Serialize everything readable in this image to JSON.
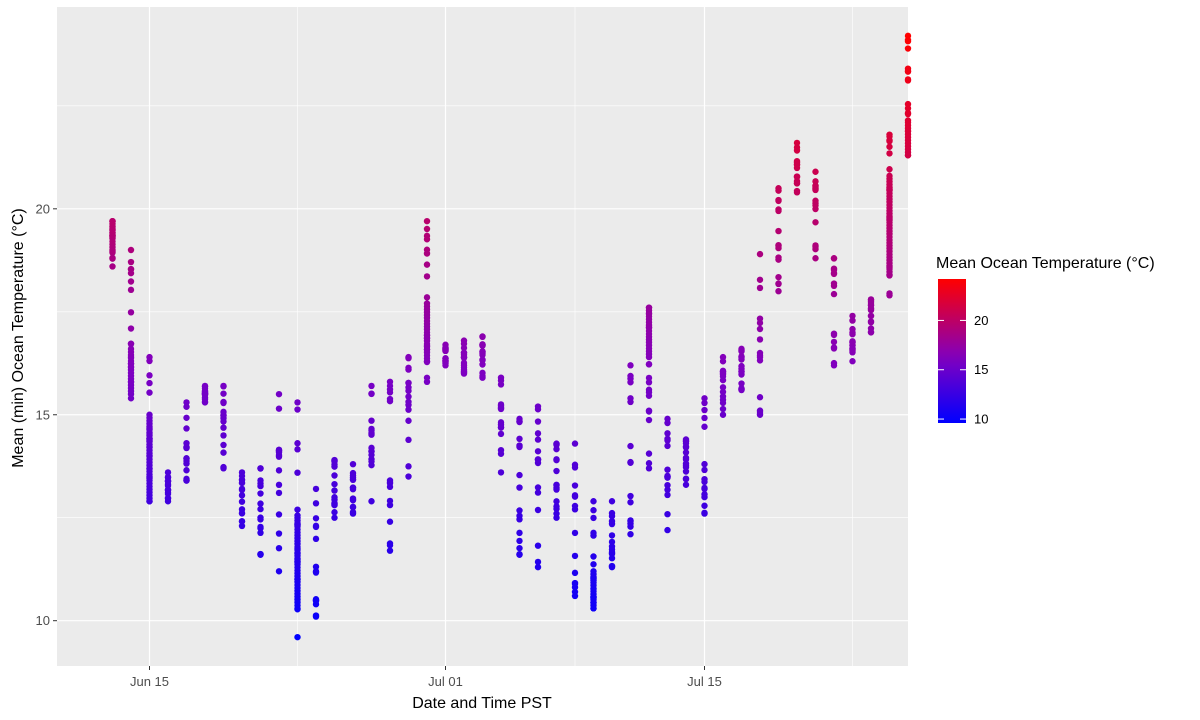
{
  "chart_data": {
    "type": "scatter",
    "title": "",
    "xlabel": "Date and Time PST",
    "ylabel": "Mean (min) Ocean Temperature (°C)",
    "x_axis": {
      "type": "date",
      "range": [
        "2021-06-10",
        "2021-07-26"
      ],
      "ticks": [
        {
          "date": "2021-06-15",
          "label": "Jun 15"
        },
        {
          "date": "2021-07-01",
          "label": "Jul 01"
        },
        {
          "date": "2021-07-15",
          "label": "Jul 15"
        }
      ]
    },
    "y_axis": {
      "range": [
        8.9,
        24.9
      ],
      "ticks": [
        {
          "value": 10,
          "label": "10"
        },
        {
          "value": 15,
          "label": "15"
        },
        {
          "value": 20,
          "label": "20"
        }
      ]
    },
    "grid": true,
    "color_scale": {
      "title": "Mean Ocean Temperature (°C)",
      "low_color": "#0000ff",
      "mid_color": "#8000c0",
      "high_color": "#ff0000",
      "range": [
        9.6,
        24.2
      ],
      "ticks": [
        {
          "value": 10,
          "label": "10"
        },
        {
          "value": 15,
          "label": "15"
        },
        {
          "value": 20,
          "label": "20"
        }
      ],
      "legend_position": "right"
    },
    "days": [
      {
        "date": "2021-06-13",
        "min": 18.6,
        "max": 19.7,
        "dense_low": 19.0
      },
      {
        "date": "2021-06-14",
        "min": 15.4,
        "max": 19.0,
        "dense_low": 15.5,
        "dense_high": 16.6
      },
      {
        "date": "2021-06-15",
        "min": 12.9,
        "max": 16.4,
        "dense_low": 12.9,
        "dense_high": 15.0
      },
      {
        "date": "2021-06-16",
        "min": 12.9,
        "max": 13.6
      },
      {
        "date": "2021-06-17",
        "min": 13.4,
        "max": 15.3
      },
      {
        "date": "2021-06-18",
        "min": 15.3,
        "max": 15.7
      },
      {
        "date": "2021-06-19",
        "min": 13.7,
        "max": 15.7
      },
      {
        "date": "2021-06-20",
        "min": 12.3,
        "max": 13.6
      },
      {
        "date": "2021-06-21",
        "min": 11.6,
        "max": 13.7
      },
      {
        "date": "2021-06-22",
        "min": 11.2,
        "max": 15.5
      },
      {
        "date": "2021-06-23",
        "min": 9.6,
        "max": 15.3,
        "dense_low": 10.3,
        "dense_high": 12.5
      },
      {
        "date": "2021-06-24",
        "min": 10.1,
        "max": 13.2
      },
      {
        "date": "2021-06-25",
        "min": 12.5,
        "max": 13.9
      },
      {
        "date": "2021-06-26",
        "min": 12.6,
        "max": 13.8
      },
      {
        "date": "2021-06-27",
        "min": 12.9,
        "max": 15.7
      },
      {
        "date": "2021-06-28",
        "min": 11.7,
        "max": 15.8
      },
      {
        "date": "2021-06-29",
        "min": 13.5,
        "max": 16.4
      },
      {
        "date": "2021-06-30",
        "min": 15.8,
        "max": 19.7,
        "dense_low": 16.3,
        "dense_high": 17.7
      },
      {
        "date": "2021-07-01",
        "min": 16.2,
        "max": 16.7
      },
      {
        "date": "2021-07-02",
        "min": 16.0,
        "max": 16.8
      },
      {
        "date": "2021-07-03",
        "min": 15.9,
        "max": 16.9
      },
      {
        "date": "2021-07-04",
        "min": 13.6,
        "max": 15.9
      },
      {
        "date": "2021-07-05",
        "min": 11.6,
        "max": 14.9
      },
      {
        "date": "2021-07-06",
        "min": 11.3,
        "max": 15.2
      },
      {
        "date": "2021-07-07",
        "min": 12.5,
        "max": 14.3
      },
      {
        "date": "2021-07-08",
        "min": 10.6,
        "max": 14.3
      },
      {
        "date": "2021-07-09",
        "min": 10.3,
        "max": 12.9,
        "dense_low": 10.3,
        "dense_high": 11.2
      },
      {
        "date": "2021-07-10",
        "min": 11.3,
        "max": 12.9
      },
      {
        "date": "2021-07-11",
        "min": 12.1,
        "max": 16.2
      },
      {
        "date": "2021-07-12",
        "min": 13.7,
        "max": 17.6,
        "dense_low": 16.4,
        "dense_high": 17.6
      },
      {
        "date": "2021-07-13",
        "min": 12.2,
        "max": 14.9
      },
      {
        "date": "2021-07-14",
        "min": 13.3,
        "max": 14.4
      },
      {
        "date": "2021-07-15",
        "min": 12.6,
        "max": 15.4
      },
      {
        "date": "2021-07-16",
        "min": 15.0,
        "max": 16.4
      },
      {
        "date": "2021-07-17",
        "min": 15.6,
        "max": 16.6
      },
      {
        "date": "2021-07-18",
        "min": 15.0,
        "max": 18.9
      },
      {
        "date": "2021-07-19",
        "min": 18.0,
        "max": 20.5
      },
      {
        "date": "2021-07-20",
        "min": 20.4,
        "max": 21.6
      },
      {
        "date": "2021-07-21",
        "min": 18.8,
        "max": 20.9
      },
      {
        "date": "2021-07-22",
        "min": 16.2,
        "max": 18.8
      },
      {
        "date": "2021-07-23",
        "min": 16.3,
        "max": 17.4
      },
      {
        "date": "2021-07-24",
        "min": 17.0,
        "max": 17.8
      },
      {
        "date": "2021-07-25",
        "min": 17.9,
        "max": 21.8,
        "dense_low": 18.4,
        "dense_high": 20.8
      },
      {
        "date": "2021-07-26",
        "min": 21.3,
        "max": 24.2,
        "dense_low": 21.3,
        "dense_high": 22.1
      }
    ]
  }
}
